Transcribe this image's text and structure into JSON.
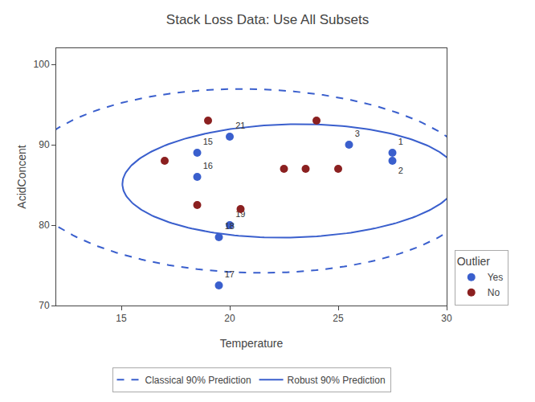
{
  "chart_data": {
    "type": "scatter",
    "title": "Stack Loss Data: Use All Subsets",
    "xlabel": "Temperature",
    "ylabel": "AcidConcent",
    "xlim": [
      12,
      30
    ],
    "ylim": [
      70,
      102
    ],
    "xticks": [
      15,
      20,
      25,
      30
    ],
    "yticks": [
      70,
      80,
      90,
      100
    ],
    "grid": false,
    "legend": "lower right",
    "legend_title": "Outlier",
    "series": [
      {
        "name": "Yes",
        "color": "#3a5fcd",
        "marker": "circle",
        "x": [
          20.0,
          18.5,
          18.5,
          19.5,
          20.0,
          19.5,
          27.5,
          27.5,
          25.5
        ],
        "values": [
          91.0,
          89.0,
          86.0,
          78.5,
          80.0,
          72.5,
          89.0,
          88.0,
          90.0
        ],
        "labels": [
          "21",
          "15",
          "16",
          "18",
          "19",
          "17",
          "1",
          "2",
          "3"
        ]
      },
      {
        "name": "No",
        "color": "#8b2020",
        "marker": "circle",
        "x": [
          17.0,
          19.0,
          18.5,
          20.5,
          22.5,
          23.5,
          25.0,
          24.0
        ],
        "values": [
          88.0,
          93.0,
          82.5,
          82.0,
          87.0,
          87.0,
          87.0,
          93.0
        ]
      }
    ],
    "ellipses": [
      {
        "name": "Classical 90% Prediction",
        "color": "#3a5fcd",
        "line_style": "dashed",
        "cx": 21.0,
        "cy": 85.5,
        "rx": 10.5,
        "ry": 11.5,
        "angle": 15
      },
      {
        "name": "Robust 90% Prediction",
        "color": "#3a5fcd",
        "line_style": "solid",
        "cx": 22.8,
        "cy": 85.5,
        "rx": 7.8,
        "ry": 7.0,
        "angle": 15
      }
    ]
  }
}
